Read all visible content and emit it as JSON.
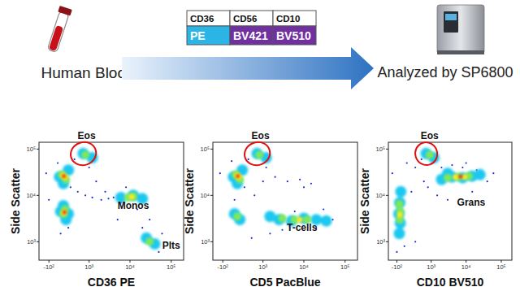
{
  "diagram": {
    "sample": "Human Blood",
    "table": {
      "header": [
        "CD36",
        "CD56",
        "CD10"
      ],
      "rows": [
        [
          "PE",
          "BV421",
          "BV510"
        ]
      ]
    },
    "instrument": "Analyzed by SP6800"
  },
  "chart_data": [
    {
      "type": "scatter",
      "xlabel": "CD36 PE",
      "ylabel": "Side Scatter",
      "log": "y",
      "xlim": [
        -300,
        200000
      ],
      "ylim": [
        400,
        140000
      ],
      "xticks": [
        {
          "value": -100,
          "label": "-10²"
        },
        {
          "value": 1000,
          "label": "10³"
        },
        {
          "value": 10000,
          "label": "10⁴"
        },
        {
          "value": 100000,
          "label": "10⁵"
        }
      ],
      "yticks": [
        {
          "value": 1000,
          "label": "10³"
        },
        {
          "value": 10000,
          "label": "10⁴"
        },
        {
          "value": 100000,
          "label": "10⁵"
        }
      ],
      "series": [
        {
          "color": "#1a2fd0",
          "marker": "circle",
          "x": [
            -150,
            50,
            300,
            500,
            800,
            1200,
            2000,
            3000,
            4000,
            6000,
            2500,
            1500,
            20000,
            40000,
            60000,
            15000,
            8000,
            400,
            250,
            100,
            -100,
            30000,
            50000,
            1000,
            5000
          ],
          "values": [
            30000,
            50000,
            15000,
            12000,
            10000,
            9000,
            8000,
            8500,
            9000,
            7000,
            12000,
            20000,
            2000,
            800,
            1500,
            5000,
            15000,
            60000,
            2000,
            1500,
            8000,
            3000,
            600,
            40000,
            3000
          ]
        },
        {
          "color": "#1ec8f0",
          "marker": "circle",
          "x": [
            80,
            250,
            150,
            100,
            200,
            150,
            250,
            700,
            1200,
            6000,
            12000,
            20000,
            25000,
            40000
          ],
          "values": [
            25000,
            35000,
            18000,
            4500,
            3000,
            6000,
            4000,
            80000,
            65000,
            9000,
            10000,
            8500,
            1200,
            900
          ]
        },
        {
          "color": "#7ee85a",
          "marker": "circle",
          "x": [
            120,
            200,
            150,
            180,
            12000,
            9000,
            30000,
            800
          ],
          "values": [
            28000,
            22000,
            4000,
            5000,
            9500,
            9000,
            1000,
            75000
          ]
        },
        {
          "color": "#ffe81a",
          "marker": "circle",
          "x": [
            150,
            180,
            160,
            11000
          ],
          "values": [
            27000,
            25000,
            4200,
            9300
          ]
        },
        {
          "color": "#f02a10",
          "marker": "circle",
          "x": [
            160,
            170
          ],
          "values": [
            26000,
            4300
          ]
        }
      ],
      "annotations": [
        {
          "text": "Monos",
          "x": 12000,
          "y": 5000
        },
        {
          "text": "Plts",
          "x": 100000,
          "y": 700
        }
      ],
      "gates": [
        {
          "label": "Eos",
          "x": [
            300,
            1500
          ],
          "y": [
            45000,
            140000
          ],
          "color": "#e01010"
        }
      ]
    },
    {
      "type": "scatter",
      "xlabel": "CD5 PacBlue",
      "ylabel": "Side Scatter",
      "log": "y",
      "xlim": [
        -300,
        200000
      ],
      "ylim": [
        400,
        140000
      ],
      "xticks": [
        {
          "value": -100,
          "label": "-10²"
        },
        {
          "value": 1000,
          "label": "10³"
        },
        {
          "value": 10000,
          "label": "10⁴"
        },
        {
          "value": 100000,
          "label": "10⁵"
        }
      ],
      "yticks": [
        {
          "value": 1000,
          "label": "10³"
        },
        {
          "value": 10000,
          "label": "10⁴"
        },
        {
          "value": 100000,
          "label": "10⁵"
        }
      ],
      "series": [
        {
          "color": "#1a2fd0",
          "marker": "circle",
          "x": [
            -150,
            50,
            300,
            600,
            1000,
            2000,
            4000,
            8000,
            15000,
            30000,
            50000,
            3000,
            1500,
            500,
            20000,
            400,
            100,
            6000,
            1200,
            10000
          ],
          "values": [
            30000,
            55000,
            15000,
            10000,
            20000,
            25000,
            20000,
            22000,
            18000,
            5000,
            3000,
            1800,
            1500,
            1200,
            2000,
            60000,
            8000,
            4500,
            40000,
            15000
          ]
        },
        {
          "color": "#1ec8f0",
          "marker": "circle",
          "x": [
            80,
            250,
            150,
            100,
            200,
            700,
            1200,
            2500,
            5000,
            10000,
            20000,
            35000,
            1500
          ],
          "values": [
            25000,
            35000,
            18000,
            4000,
            3000,
            80000,
            65000,
            3000,
            2800,
            3200,
            3000,
            2800,
            3500
          ]
        },
        {
          "color": "#7ee85a",
          "marker": "circle",
          "x": [
            120,
            200,
            150,
            800,
            6000,
            12000,
            3000
          ],
          "values": [
            28000,
            22000,
            3500,
            75000,
            3000,
            3000,
            3200
          ]
        },
        {
          "color": "#ffe81a",
          "marker": "circle",
          "x": [
            150,
            180,
            8000
          ],
          "values": [
            27000,
            25000,
            3000
          ]
        },
        {
          "color": "#f02a10",
          "marker": "circle",
          "x": [
            160
          ],
          "values": [
            26000
          ]
        }
      ],
      "annotations": [
        {
          "text": "T-cells",
          "x": 9000,
          "y": 1700
        }
      ],
      "gates": [
        {
          "label": "Eos",
          "x": [
            300,
            1500
          ],
          "y": [
            45000,
            140000
          ],
          "color": "#e01010"
        }
      ]
    },
    {
      "type": "scatter",
      "xlabel": "CD10 BV510",
      "ylabel": "Side Scatter",
      "log": "y",
      "xlim": [
        -300,
        200000
      ],
      "ylim": [
        400,
        140000
      ],
      "xticks": [
        {
          "value": -100,
          "label": "-10²"
        },
        {
          "value": 1000,
          "label": "10³"
        },
        {
          "value": 10000,
          "label": "10⁴"
        },
        {
          "value": 100000,
          "label": "10⁵"
        }
      ],
      "yticks": [
        {
          "value": 1000,
          "label": "10³"
        },
        {
          "value": 10000,
          "label": "10⁴"
        },
        {
          "value": 100000,
          "label": "10⁵"
        }
      ],
      "series": [
        {
          "color": "#1a2fd0",
          "marker": "circle",
          "x": [
            -200,
            100,
            300,
            600,
            200,
            2000,
            4000,
            8000,
            15000,
            40000,
            60000,
            500,
            1500,
            3000,
            -100,
            50,
            20000,
            10000,
            800,
            300
          ],
          "values": [
            30000,
            50000,
            40000,
            20000,
            12000,
            40000,
            45000,
            40000,
            12000,
            20000,
            30000,
            60000,
            10000,
            8000,
            600,
            800,
            35000,
            50000,
            15000,
            1000
          ]
        },
        {
          "color": "#1ec8f0",
          "marker": "circle",
          "x": [
            -50,
            -30,
            -60,
            -40,
            -20,
            700,
            1200,
            2000,
            4000,
            8000,
            15000,
            25000,
            3000
          ],
          "values": [
            1500,
            2500,
            4000,
            7000,
            12000,
            80000,
            65000,
            22000,
            25000,
            24000,
            26000,
            28000,
            30000
          ]
        },
        {
          "color": "#7ee85a",
          "marker": "circle",
          "x": [
            -40,
            -30,
            -50,
            3000,
            6000,
            12000,
            900
          ],
          "values": [
            3000,
            4500,
            6500,
            24000,
            25000,
            26000,
            75000
          ]
        },
        {
          "color": "#ffe81a",
          "marker": "circle",
          "x": [
            -40,
            5000,
            9000
          ],
          "values": [
            3800,
            25000,
            25000
          ]
        },
        {
          "color": "#f02a10",
          "marker": "circle",
          "x": [
            7000
          ],
          "values": [
            25500
          ]
        }
      ],
      "annotations": [
        {
          "text": "Grans",
          "x": 14000,
          "y": 6000
        }
      ],
      "gates": [
        {
          "label": "Eos",
          "x": [
            300,
            1500
          ],
          "y": [
            45000,
            140000
          ],
          "color": "#e01010"
        }
      ]
    }
  ]
}
